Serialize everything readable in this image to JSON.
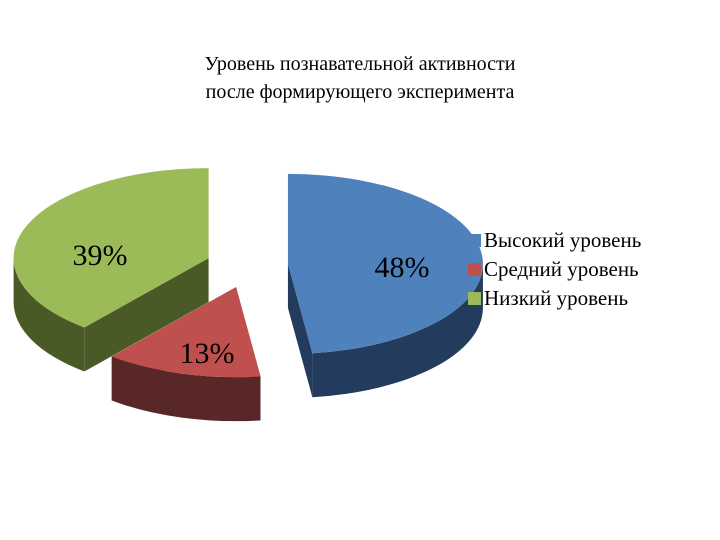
{
  "chart_data": {
    "type": "pie",
    "title": [
      "Уровень познавательной активности",
      "после формирующего эксперимента"
    ],
    "categories": [
      "Высокий уровень",
      "Средний уровень",
      "Низкий уровень"
    ],
    "values": [
      48,
      13,
      39
    ],
    "data_labels": [
      "48%",
      "13%",
      "39%"
    ],
    "colors": [
      "#4F81BD",
      "#C0504D",
      "#9BBB59"
    ],
    "side_colors": [
      "#233C5E",
      "#5A2728",
      "#4A5A27"
    ],
    "style": "3d-exploded",
    "legend": "right"
  }
}
